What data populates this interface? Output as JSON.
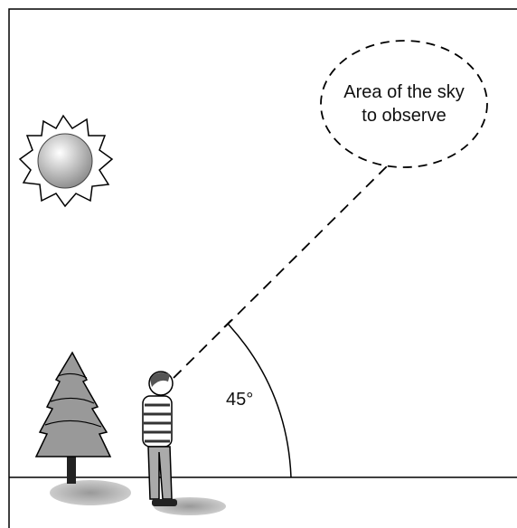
{
  "sky_area": {
    "lines": [
      "Area of the sky",
      "to observe"
    ]
  },
  "angle": {
    "label": "45°"
  }
}
